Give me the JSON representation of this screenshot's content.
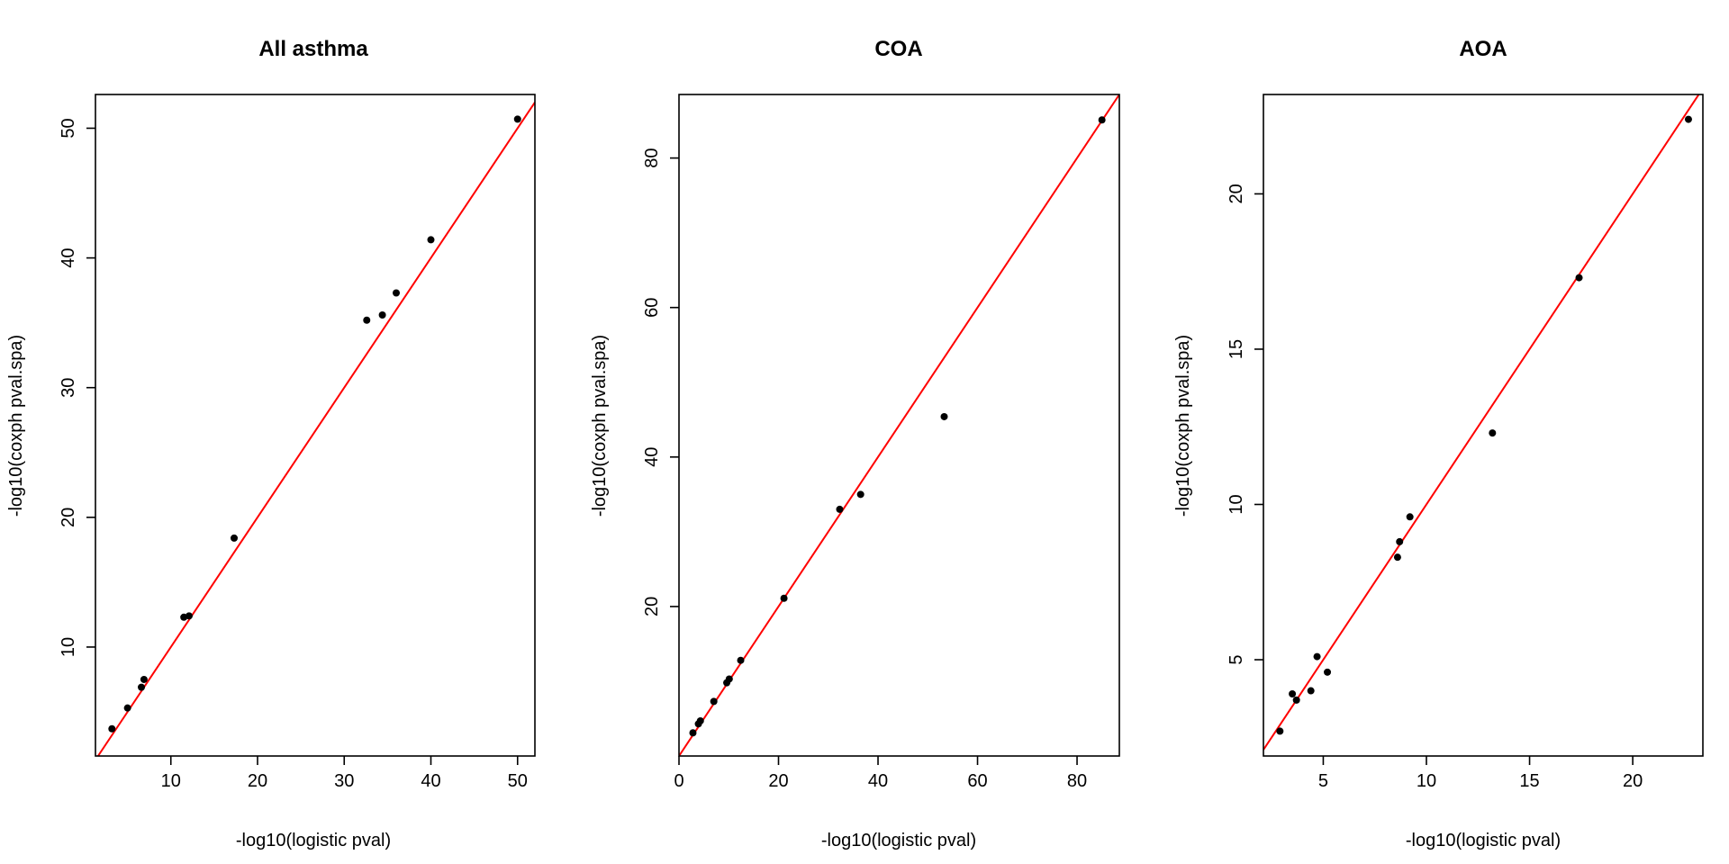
{
  "chart_data": [
    {
      "type": "scatter",
      "title": "All asthma",
      "xlabel": "-log10(logistic pval)",
      "ylabel": "-log10(coxph pval.spa)",
      "xlim": [
        1.3,
        52.0
      ],
      "ylim": [
        1.6,
        52.6
      ],
      "xticks": [
        10,
        20,
        30,
        40,
        50
      ],
      "yticks": [
        10,
        20,
        30,
        40,
        50
      ],
      "reference_line": {
        "intercept": 0,
        "slope": 1,
        "color": "#ff0000"
      },
      "points": [
        {
          "x": 3.2,
          "y": 3.7
        },
        {
          "x": 5.0,
          "y": 5.3
        },
        {
          "x": 6.6,
          "y": 6.9
        },
        {
          "x": 6.9,
          "y": 7.5
        },
        {
          "x": 11.5,
          "y": 12.3
        },
        {
          "x": 12.1,
          "y": 12.4
        },
        {
          "x": 17.3,
          "y": 18.4
        },
        {
          "x": 32.6,
          "y": 35.2
        },
        {
          "x": 34.4,
          "y": 35.6
        },
        {
          "x": 36.0,
          "y": 37.3
        },
        {
          "x": 40.0,
          "y": 41.4
        },
        {
          "x": 50.0,
          "y": 50.7
        }
      ]
    },
    {
      "type": "scatter",
      "title": "COA",
      "xlabel": "-log10(logistic pval)",
      "ylabel": "-log10(coxph pval.spa)",
      "xlim": [
        0.0,
        88.5
      ],
      "ylim": [
        0.0,
        88.5
      ],
      "xticks": [
        0,
        20,
        40,
        60,
        80
      ],
      "yticks": [
        20,
        40,
        60,
        80
      ],
      "reference_line": {
        "intercept": 0,
        "slope": 1,
        "color": "#ff0000"
      },
      "points": [
        {
          "x": 2.8,
          "y": 3.1
        },
        {
          "x": 3.9,
          "y": 4.3
        },
        {
          "x": 4.3,
          "y": 4.7
        },
        {
          "x": 7.0,
          "y": 7.3
        },
        {
          "x": 9.6,
          "y": 9.8
        },
        {
          "x": 10.1,
          "y": 10.3
        },
        {
          "x": 12.4,
          "y": 12.8
        },
        {
          "x": 21.1,
          "y": 21.1
        },
        {
          "x": 32.3,
          "y": 33.0
        },
        {
          "x": 36.5,
          "y": 35.0
        },
        {
          "x": 53.3,
          "y": 45.4
        },
        {
          "x": 85.0,
          "y": 85.1
        }
      ]
    },
    {
      "type": "scatter",
      "title": "AOA",
      "xlabel": "-log10(logistic pval)",
      "ylabel": "-log10(coxph pval.spa)",
      "xlim": [
        2.1,
        23.4
      ],
      "ylim": [
        1.9,
        23.2
      ],
      "xticks": [
        5,
        10,
        15,
        20
      ],
      "yticks": [
        5,
        10,
        15,
        20
      ],
      "reference_line": {
        "intercept": 0,
        "slope": 1,
        "color": "#ff0000"
      },
      "points": [
        {
          "x": 2.9,
          "y": 2.7
        },
        {
          "x": 3.5,
          "y": 3.9
        },
        {
          "x": 3.7,
          "y": 3.7
        },
        {
          "x": 4.4,
          "y": 4.0
        },
        {
          "x": 4.7,
          "y": 5.1
        },
        {
          "x": 5.2,
          "y": 4.6
        },
        {
          "x": 8.6,
          "y": 8.3
        },
        {
          "x": 8.7,
          "y": 8.8
        },
        {
          "x": 9.2,
          "y": 9.6
        },
        {
          "x": 13.2,
          "y": 12.3
        },
        {
          "x": 17.4,
          "y": 17.3
        },
        {
          "x": 22.7,
          "y": 22.4
        }
      ]
    }
  ]
}
